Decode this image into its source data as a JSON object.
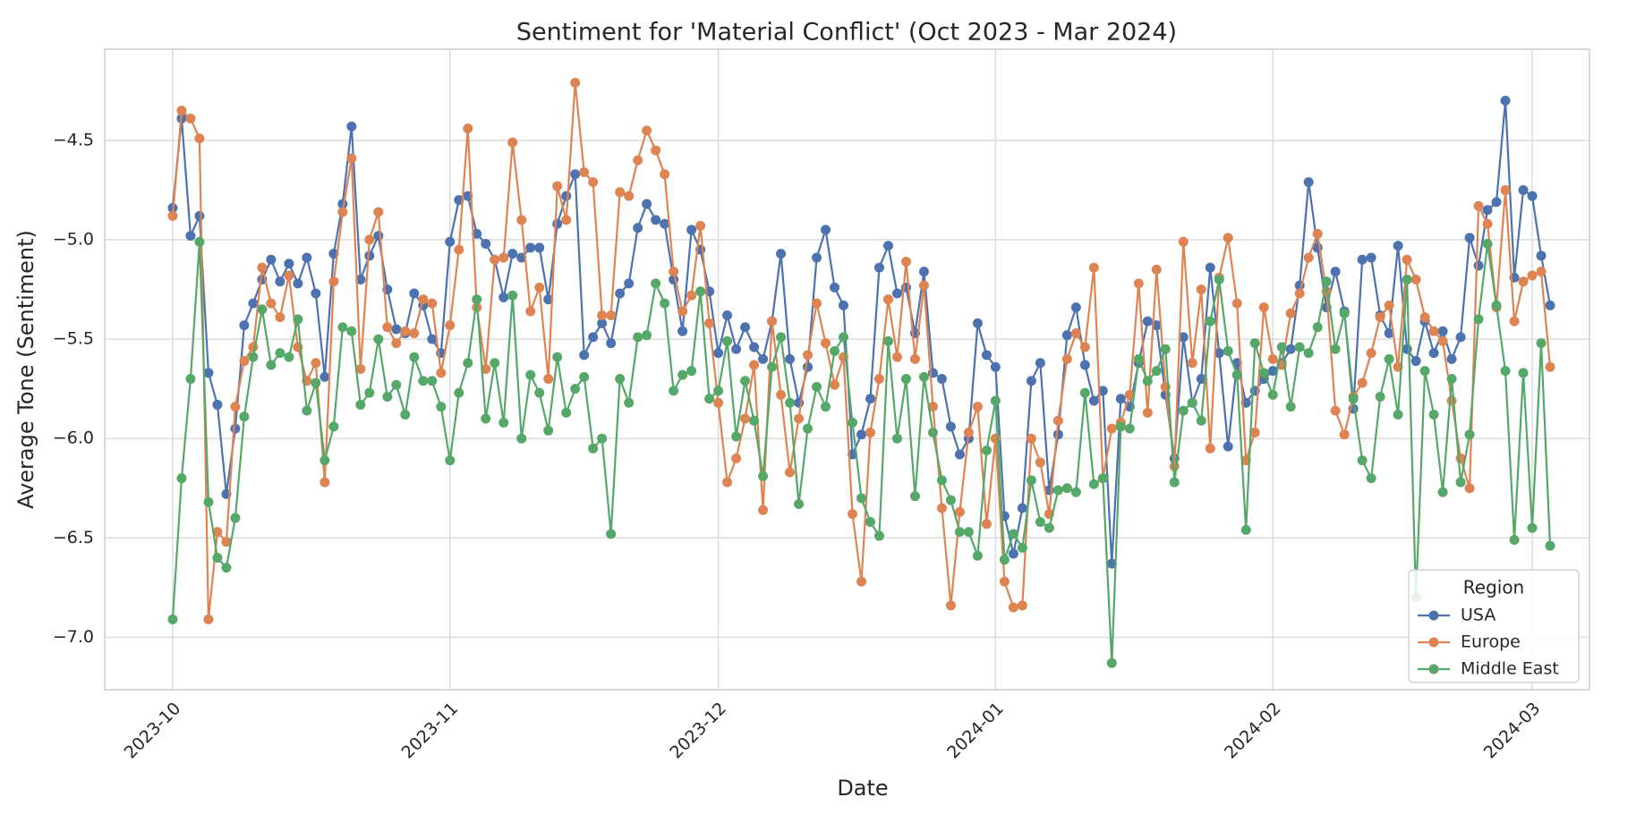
{
  "chart_data": {
    "type": "line",
    "title": "Sentiment for 'Material Conflict' (Oct 2023 - Mar 2024)",
    "x_label": "Date",
    "y_label": "Average Tone (Sentiment)",
    "x": [
      0,
      1,
      2,
      3,
      4,
      5,
      6,
      7,
      8,
      9,
      10,
      11,
      12,
      13,
      14,
      15,
      16,
      17,
      18,
      19,
      20,
      21,
      22,
      23,
      24,
      25,
      26,
      27,
      28,
      29,
      30,
      31,
      32,
      33,
      34,
      35,
      36,
      37,
      38,
      39,
      40,
      41,
      42,
      43,
      44,
      45,
      46,
      47,
      48,
      49,
      50,
      51,
      52,
      53,
      54,
      55,
      56,
      57,
      58,
      59,
      60,
      61,
      62,
      63,
      64,
      65,
      66,
      67,
      68,
      69,
      70,
      71,
      72,
      73,
      74,
      75,
      76,
      77,
      78,
      79,
      80,
      81,
      82,
      83,
      84,
      85,
      86,
      87,
      88,
      89,
      90,
      91,
      92,
      93,
      94,
      95,
      96,
      97,
      98,
      99,
      100,
      101,
      102,
      103,
      104,
      105,
      106,
      107,
      108,
      109,
      110,
      111,
      112,
      113,
      114,
      115,
      116,
      117,
      118,
      119,
      120,
      121,
      122,
      123,
      124,
      125,
      126,
      127,
      128,
      129,
      130,
      131,
      132,
      133,
      134,
      135,
      136,
      137,
      138,
      139,
      140,
      141,
      142,
      143,
      144,
      145,
      146,
      147,
      148,
      149,
      150,
      151,
      152,
      153,
      154
    ],
    "series": [
      {
        "name": "USA",
        "color": "#4c72b0",
        "values": [
          -4.84,
          -4.39,
          -4.98,
          -4.88,
          -5.67,
          -5.83,
          -6.28,
          -5.95,
          -5.43,
          -5.32,
          -5.2,
          -5.1,
          -5.21,
          -5.12,
          -5.22,
          -5.09,
          -5.27,
          -5.69,
          -5.07,
          -4.82,
          -4.43,
          -5.2,
          -5.08,
          -4.98,
          -5.25,
          -5.45,
          -5.47,
          -5.27,
          -5.33,
          -5.5,
          -5.57,
          -5.01,
          -4.8,
          -4.78,
          -4.97,
          -5.02,
          -5.1,
          -5.29,
          -5.07,
          -5.09,
          -5.04,
          -5.04,
          -5.3,
          -4.92,
          -4.78,
          -4.67,
          -5.58,
          -5.49,
          -5.42,
          -5.52,
          -5.27,
          -5.22,
          -4.94,
          -4.82,
          -4.9,
          -4.92,
          -5.2,
          -5.46,
          -4.95,
          -5.05,
          -5.26,
          -5.57,
          -5.38,
          -5.55,
          -5.44,
          -5.54,
          -5.6,
          -5.41,
          -5.07,
          -5.6,
          -5.82,
          -5.64,
          -5.09,
          -4.95,
          -5.24,
          -5.33,
          -6.08,
          -5.98,
          -5.8,
          -5.14,
          -5.03,
          -5.27,
          -5.24,
          -5.47,
          -5.16,
          -5.67,
          -5.7,
          -5.94,
          -6.08,
          -6.0,
          -5.42,
          -5.58,
          -5.64,
          -6.39,
          -6.58,
          -6.35,
          -5.71,
          -5.62,
          -6.26,
          -5.98,
          -5.48,
          -5.34,
          -5.63,
          -5.81,
          -5.76,
          -6.63,
          -5.8,
          -5.84,
          -5.62,
          -5.41,
          -5.43,
          -5.78,
          -6.1,
          -5.49,
          -5.82,
          -5.7,
          -5.14,
          -5.57,
          -6.04,
          -5.62,
          -5.82,
          -5.76,
          -5.7,
          -5.66,
          -5.62,
          -5.55,
          -5.23,
          -4.71,
          -5.04,
          -5.34,
          -5.16,
          -5.36,
          -5.85,
          -5.1,
          -5.09,
          -5.38,
          -5.47,
          -5.03,
          -5.55,
          -5.61,
          -5.41,
          -5.57,
          -5.46,
          -5.6,
          -5.49,
          -4.99,
          -5.13,
          -4.85,
          -4.81,
          -4.3,
          -5.19,
          -4.75,
          -4.78,
          -5.08,
          -5.33
        ]
      },
      {
        "name": "Europe",
        "color": "#dd8452",
        "values": [
          -4.88,
          -4.35,
          -4.39,
          -4.49,
          -6.91,
          -6.47,
          -6.52,
          -5.84,
          -5.61,
          -5.54,
          -5.14,
          -5.32,
          -5.39,
          -5.18,
          -5.54,
          -5.71,
          -5.62,
          -6.22,
          -5.21,
          -4.86,
          -4.59,
          -5.65,
          -5.0,
          -4.86,
          -5.44,
          -5.52,
          -5.46,
          -5.47,
          -5.3,
          -5.32,
          -5.67,
          -5.43,
          -5.05,
          -4.44,
          -5.34,
          -5.65,
          -5.1,
          -5.09,
          -4.51,
          -4.9,
          -5.36,
          -5.24,
          -5.7,
          -4.73,
          -4.9,
          -4.21,
          -4.66,
          -4.71,
          -5.38,
          -5.38,
          -4.76,
          -4.78,
          -4.6,
          -4.45,
          -4.55,
          -4.67,
          -5.16,
          -5.36,
          -5.28,
          -4.93,
          -5.42,
          -5.82,
          -6.22,
          -6.1,
          -5.9,
          -5.63,
          -6.36,
          -5.41,
          -5.78,
          -6.17,
          -5.9,
          -5.58,
          -5.32,
          -5.52,
          -5.73,
          -5.59,
          -6.38,
          -6.72,
          -5.97,
          -5.7,
          -5.3,
          -5.59,
          -5.11,
          -5.6,
          -5.23,
          -5.84,
          -6.35,
          -6.84,
          -6.37,
          -5.97,
          -5.84,
          -6.43,
          -6.0,
          -6.72,
          -6.85,
          -6.84,
          -6.0,
          -6.12,
          -6.38,
          -5.91,
          -5.6,
          -5.47,
          -5.54,
          -5.14,
          -6.2,
          -5.95,
          -5.92,
          -5.78,
          -5.22,
          -5.87,
          -5.15,
          -5.74,
          -6.14,
          -5.01,
          -5.62,
          -5.25,
          -6.05,
          -5.19,
          -4.99,
          -5.32,
          -6.11,
          -5.97,
          -5.34,
          -5.6,
          -5.63,
          -5.37,
          -5.27,
          -5.09,
          -4.97,
          -5.26,
          -5.86,
          -5.98,
          -5.79,
          -5.72,
          -5.57,
          -5.39,
          -5.33,
          -5.64,
          -5.1,
          -5.2,
          -5.39,
          -5.46,
          -5.51,
          -5.81,
          -6.1,
          -6.25,
          -4.83,
          -4.92,
          -5.34,
          -4.75,
          -5.41,
          -5.21,
          -5.18,
          -5.16,
          -5.64
        ]
      },
      {
        "name": "Middle East",
        "color": "#55a868",
        "values": [
          -6.91,
          -6.2,
          -5.7,
          -5.01,
          -6.32,
          -6.6,
          -6.65,
          -6.4,
          -5.89,
          -5.59,
          -5.35,
          -5.63,
          -5.57,
          -5.59,
          -5.4,
          -5.86,
          -5.72,
          -6.11,
          -5.94,
          -5.44,
          -5.46,
          -5.83,
          -5.77,
          -5.5,
          -5.79,
          -5.73,
          -5.88,
          -5.59,
          -5.71,
          -5.71,
          -5.84,
          -6.11,
          -5.77,
          -5.62,
          -5.3,
          -5.9,
          -5.62,
          -5.92,
          -5.28,
          -6.0,
          -5.68,
          -5.77,
          -5.96,
          -5.59,
          -5.87,
          -5.75,
          -5.69,
          -6.05,
          -6.0,
          -6.48,
          -5.7,
          -5.82,
          -5.49,
          -5.48,
          -5.22,
          -5.32,
          -5.76,
          -5.68,
          -5.66,
          -5.26,
          -5.8,
          -5.76,
          -5.51,
          -5.99,
          -5.71,
          -5.91,
          -6.19,
          -5.64,
          -5.49,
          -5.82,
          -6.33,
          -5.95,
          -5.74,
          -5.84,
          -5.56,
          -5.49,
          -5.92,
          -6.3,
          -6.42,
          -6.49,
          -5.51,
          -6.0,
          -5.7,
          -6.29,
          -5.69,
          -5.97,
          -6.21,
          -6.31,
          -6.47,
          -6.47,
          -6.59,
          -6.06,
          -5.81,
          -6.61,
          -6.48,
          -6.55,
          -6.21,
          -6.42,
          -6.45,
          -6.26,
          -6.25,
          -6.27,
          -5.77,
          -6.23,
          -6.2,
          -7.13,
          -5.94,
          -5.95,
          -5.6,
          -5.71,
          -5.66,
          -5.55,
          -6.22,
          -5.86,
          -5.82,
          -5.91,
          -5.41,
          -5.2,
          -5.56,
          -5.68,
          -6.46,
          -5.52,
          -5.67,
          -5.78,
          -5.54,
          -5.84,
          -5.54,
          -5.57,
          -5.44,
          -5.21,
          -5.55,
          -5.37,
          -5.8,
          -6.11,
          -6.2,
          -5.79,
          -5.6,
          -5.88,
          -5.2,
          -6.8,
          -5.66,
          -5.88,
          -6.27,
          -5.7,
          -6.22,
          -5.98,
          -5.4,
          -5.02,
          -5.33,
          -5.66,
          -6.51,
          -5.67,
          -6.45,
          -5.52,
          -6.54
        ]
      }
    ],
    "xlim": [
      -7.6,
      158.4
    ],
    "xticks": [
      {
        "value": 0,
        "label": "2023-10"
      },
      {
        "value": 31,
        "label": "2023-11"
      },
      {
        "value": 61,
        "label": "2023-12"
      },
      {
        "value": 92,
        "label": "2024-01"
      },
      {
        "value": 123,
        "label": "2024-02"
      },
      {
        "value": 152,
        "label": "2024-03"
      }
    ],
    "ylim": [
      -7.264,
      -4.041
    ],
    "yticks": [
      {
        "value": -7.0,
        "label": "−7.0"
      },
      {
        "value": -6.5,
        "label": "−6.5"
      },
      {
        "value": -6.0,
        "label": "−6.0"
      },
      {
        "value": -5.5,
        "label": "−5.5"
      },
      {
        "value": -5.0,
        "label": "−5.0"
      },
      {
        "value": -4.5,
        "label": "−4.5"
      }
    ],
    "grid": true,
    "legend_title": "Region",
    "legend_position": "lower right"
  }
}
